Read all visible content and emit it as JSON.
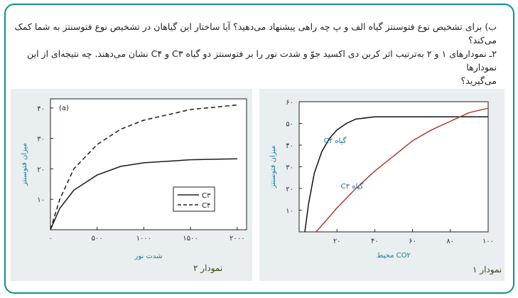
{
  "question": {
    "line1": "ب) برای تشخیص نوع فتوسنتز گیاه الف و پ چه راهی پیشنهاد می‌دهید؟ آیا ساختار این گیاهان در تشخیص نوع فتوسنتز به شما کمک می‌کند؟",
    "line2": "۲ـ نمودارهای ۱ و ۲ به‌ترتیب اثر کربن دی اکسید جوّ و شدت نور را بر فتوسنتز دو گیاه C۳ و C۴ نشان می‌دهند. چه نتیجه‌ای از این نمودارها",
    "line3": "می‌گیرید؟"
  },
  "charts": {
    "chart2": {
      "caption": "نمودار ۲",
      "panel_tag": "(a)",
      "ylabel": "میزان فتوسنتز",
      "xlabel": "شدت نور",
      "yticks": [
        "۱۰",
        "۲۰",
        "۳۰",
        "۴۰"
      ],
      "xticks": [
        "۰",
        "۵۰۰",
        "۱۰۰۰",
        "۱۵۰۰",
        "۲۰۰۰"
      ],
      "legend": [
        "C۳",
        "C۴"
      ]
    },
    "chart1": {
      "caption": "نمودار ۱",
      "ylabel": "میزان فتوسنتز",
      "xlabel": "CO۲ محیط",
      "yticks": [
        "۱۰",
        "۲۰",
        "۳۰",
        "۴۰",
        "۵۰",
        "۶۰"
      ],
      "xticks": [
        "۲۰",
        "۴۰",
        "۶۰",
        "۸۰",
        "۱۰۰"
      ],
      "series_labels": [
        "گیاه C۴",
        "گیاه C۳"
      ]
    }
  },
  "chart_data": [
    {
      "type": "line",
      "xlim": [
        0,
        2100
      ],
      "ylim": [
        0,
        43
      ],
      "series": [
        {
          "name": "C۳",
          "style": "solid",
          "color": "#1a1a1a",
          "x": [
            0,
            100,
            250,
            500,
            750,
            1000,
            1500,
            2000
          ],
          "y": [
            0,
            7,
            13,
            18,
            20.8,
            22,
            23,
            23.3
          ]
        },
        {
          "name": "C۴",
          "style": "dashed",
          "color": "#1a1a1a",
          "x": [
            0,
            100,
            250,
            500,
            750,
            1000,
            1500,
            2000
          ],
          "y": [
            0,
            10,
            20,
            28,
            33,
            36,
            39.5,
            41
          ]
        }
      ]
    },
    {
      "type": "line",
      "xlim": [
        0,
        100
      ],
      "ylim": [
        0,
        60
      ],
      "series": [
        {
          "name": "گیاه C۴",
          "color": "#111111",
          "x": [
            3,
            5,
            8,
            12,
            16,
            20,
            25,
            30,
            40,
            50,
            60,
            100
          ],
          "y": [
            0,
            13,
            27,
            37,
            43,
            47,
            50,
            52,
            53,
            53,
            53,
            53
          ]
        },
        {
          "name": "گیاه C۳",
          "color": "#b33a2e",
          "x": [
            9,
            15,
            20,
            30,
            40,
            50,
            60,
            70,
            80,
            90,
            100
          ],
          "y": [
            0,
            6,
            11,
            20,
            28,
            35,
            42,
            47,
            51,
            55,
            57
          ]
        }
      ]
    }
  ]
}
